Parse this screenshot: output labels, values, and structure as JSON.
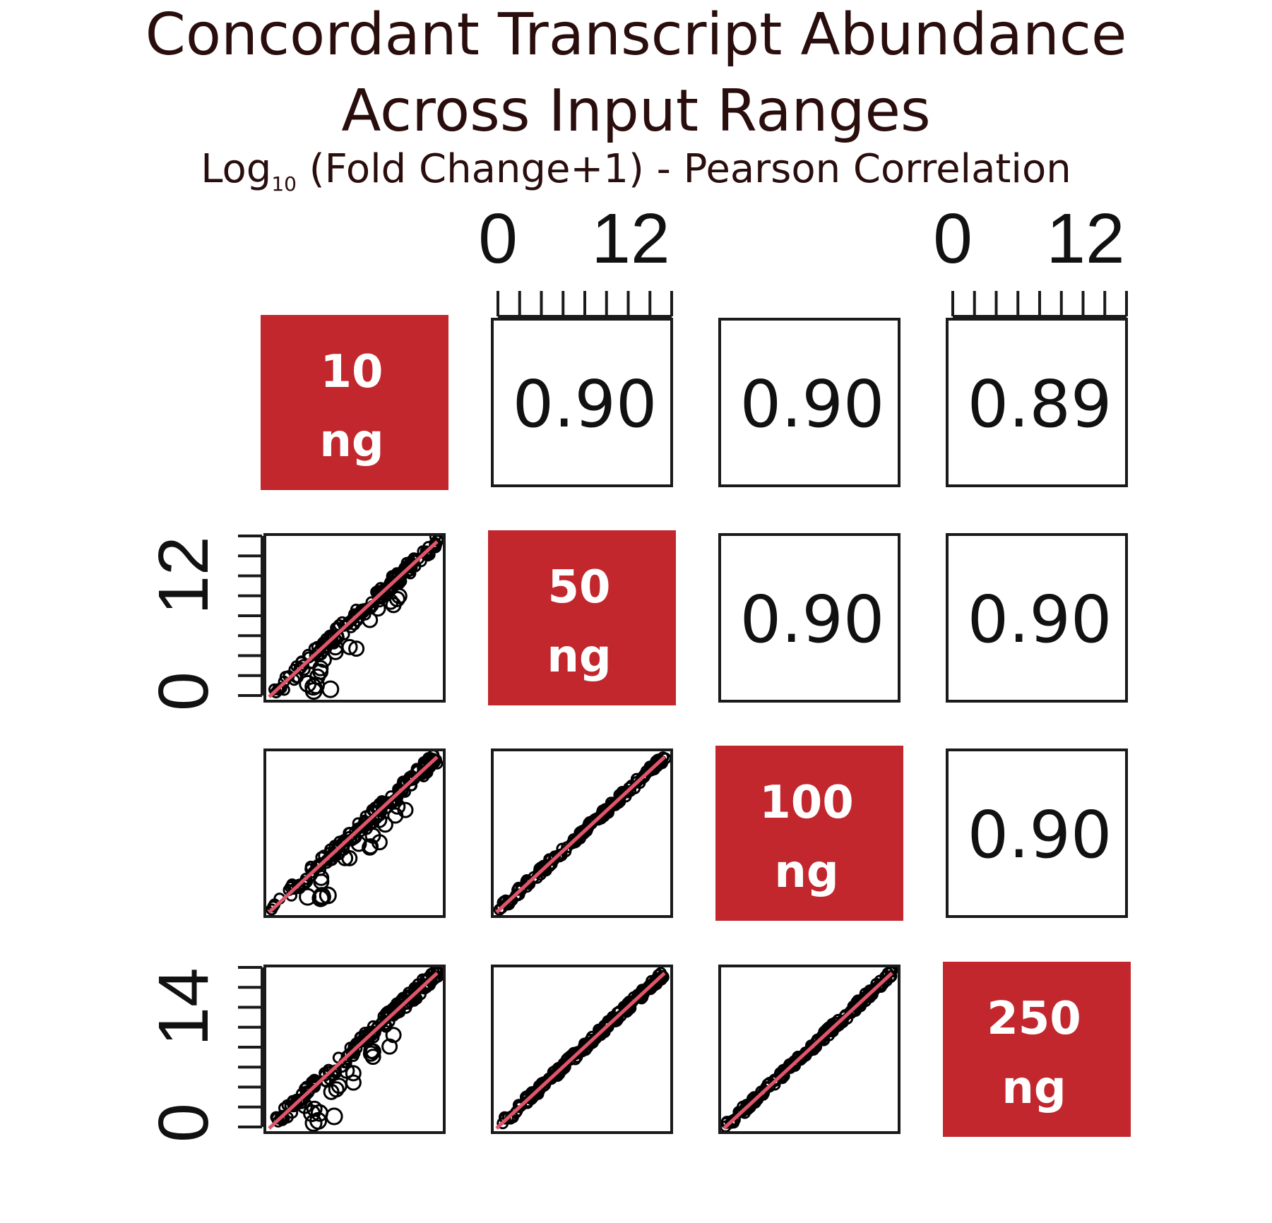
{
  "title": {
    "line1": "Concordant Transcript Abundance",
    "line2": "Across Input Ranges",
    "subtitle_prefix": "Log",
    "subtitle_sub": "10",
    "subtitle_rest": " (Fold Change+1) - Pearson Correlation"
  },
  "chart_data": {
    "type": "scatter",
    "layout": "pairs-matrix",
    "variables": [
      {
        "line1": "10",
        "line2": "ng"
      },
      {
        "line1": "50",
        "line2": "ng"
      },
      {
        "line1": "100",
        "line2": "ng"
      },
      {
        "line1": "250",
        "line2": "ng"
      }
    ],
    "upper_correlations": [
      {
        "row": 0,
        "col": 1,
        "value": "0.90"
      },
      {
        "row": 0,
        "col": 2,
        "value": "0.90"
      },
      {
        "row": 0,
        "col": 3,
        "value": "0.89"
      },
      {
        "row": 1,
        "col": 2,
        "value": "0.90"
      },
      {
        "row": 1,
        "col": 3,
        "value": "0.90"
      },
      {
        "row": 2,
        "col": 3,
        "value": "0.90"
      }
    ],
    "top_axes": [
      {
        "col": 1,
        "ticks": [
          "0",
          "12"
        ],
        "range": [
          0,
          12
        ]
      },
      {
        "col": 3,
        "ticks": [
          "0",
          "12"
        ],
        "range": [
          0,
          12
        ]
      }
    ],
    "left_axes": [
      {
        "row": 1,
        "ticks": [
          "0",
          "12"
        ],
        "range": [
          0,
          12
        ]
      },
      {
        "row": 3,
        "ticks": [
          "0",
          "14"
        ],
        "range": [
          0,
          14
        ]
      }
    ],
    "colors": {
      "diagonal_fill": "#c1272d",
      "fit_line": "#e0556a",
      "points": "#000000",
      "frame": "#1a1a1a"
    }
  }
}
